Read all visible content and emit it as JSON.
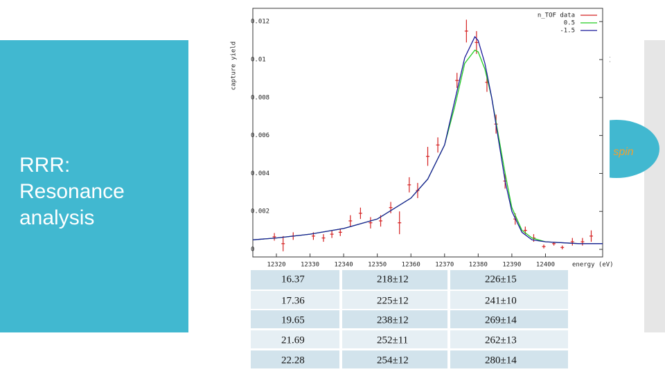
{
  "slide": {
    "title": "RRR: Resonance analysis",
    "fragment_right": "t",
    "callout": "n spin"
  },
  "chart_data": {
    "type": "line",
    "y_label": "capture yield",
    "x_label": "energy (eV)",
    "xlim": [
      12313,
      12417
    ],
    "ylim": [
      -0.0004,
      0.0127
    ],
    "xticks": [
      12320,
      12330,
      12340,
      12350,
      12360,
      12370,
      12380,
      12390,
      12400
    ],
    "yticks": [
      0,
      0.002,
      0.004,
      0.006,
      0.008,
      0.01,
      0.012
    ],
    "legend": "top-right",
    "series": [
      {
        "name": "n_TOF data",
        "color": "#d42020",
        "style": "errorbar",
        "x": [
          12319.4,
          12322,
          12325,
          12331,
          12334,
          12336.5,
          12339,
          12342,
          12345,
          12348,
          12351,
          12354,
          12356.6,
          12359.5,
          12362,
          12365,
          12368,
          12373.7,
          12376.5,
          12379.5,
          12382.6,
          12385.3,
          12388,
          12391,
          12394,
          12396.5,
          12399.5,
          12402.5,
          12405,
          12408,
          12411,
          12413.6
        ],
        "values": [
          0.00066,
          0.0003,
          0.0007,
          0.0007,
          0.0006,
          0.0008,
          0.0009,
          0.0015,
          0.0019,
          0.0014,
          0.0015,
          0.0022,
          0.0014,
          0.0034,
          0.0031,
          0.0049,
          0.0055,
          0.0089,
          0.0115,
          0.0109,
          0.0088,
          0.0066,
          0.0036,
          0.0016,
          0.001,
          0.0006,
          0.00015,
          0.0003,
          0.0001,
          0.0004,
          0.0004,
          0.0007
        ],
        "errors": [
          0.0002,
          0.0004,
          0.0002,
          0.0002,
          0.0002,
          0.0002,
          0.0002,
          0.0003,
          0.0003,
          0.0003,
          0.0003,
          0.0003,
          0.0006,
          0.0004,
          0.0004,
          0.0005,
          0.0004,
          0.0004,
          0.0006,
          0.0006,
          0.0005,
          0.0005,
          0.0004,
          0.0003,
          0.0002,
          0.0002,
          0.0001,
          0.0001,
          0.0001,
          0.0002,
          0.0002,
          0.0003
        ]
      },
      {
        "name": "0.5",
        "color": "#22cc22",
        "x": [
          12313,
          12320,
          12330,
          12340,
          12350,
          12360,
          12365,
          12370,
          12373,
          12376,
          12379,
          12380,
          12382,
          12384,
          12386,
          12388,
          12390,
          12393,
          12396,
          12400,
          12410,
          12417
        ],
        "values": [
          0.0005,
          0.0006,
          0.0008,
          0.0011,
          0.0016,
          0.0027,
          0.0037,
          0.0055,
          0.0075,
          0.0098,
          0.0105,
          0.0104,
          0.0095,
          0.008,
          0.006,
          0.004,
          0.0022,
          0.001,
          0.0006,
          0.0004,
          0.0003,
          0.0003
        ]
      },
      {
        "name": "-1.5",
        "color": "#1a1a9a",
        "x": [
          12313,
          12320,
          12330,
          12340,
          12350,
          12360,
          12365,
          12370,
          12373,
          12376,
          12379,
          12380,
          12382,
          12384,
          12386,
          12388,
          12390,
          12393,
          12396,
          12400,
          12410,
          12417
        ],
        "values": [
          0.0005,
          0.0006,
          0.0008,
          0.0011,
          0.0016,
          0.0027,
          0.0037,
          0.0055,
          0.0078,
          0.0101,
          0.0112,
          0.011,
          0.0098,
          0.008,
          0.0058,
          0.0036,
          0.002,
          0.0009,
          0.0005,
          0.0004,
          0.0003,
          0.0003
        ]
      }
    ]
  },
  "table": {
    "rows": [
      [
        "16.37",
        "218±12",
        "226±15"
      ],
      [
        "17.36",
        "225±12",
        "241±10"
      ],
      [
        "19.65",
        "238±12",
        "269±14"
      ],
      [
        "21.69",
        "252±11",
        "262±13"
      ],
      [
        "22.28",
        "254±12",
        "280±14"
      ]
    ]
  }
}
